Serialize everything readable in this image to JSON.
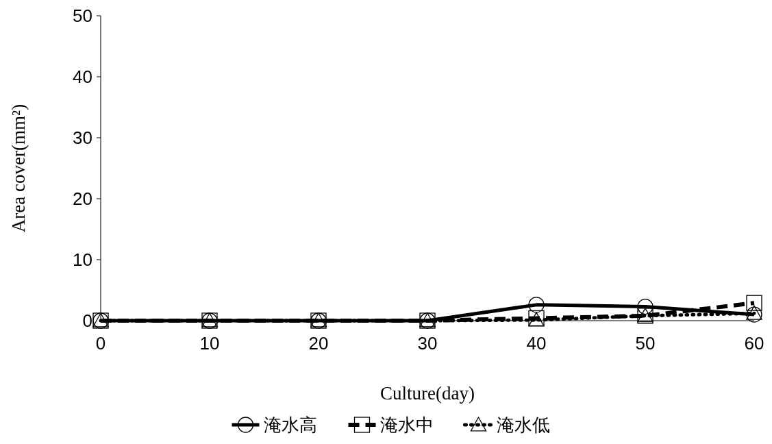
{
  "chart_data": {
    "type": "line",
    "xlabel": "Culture(day)",
    "ylabel": "Area cover(mm²)",
    "x": [
      0,
      10,
      20,
      30,
      40,
      50,
      60
    ],
    "xlim": [
      0,
      60
    ],
    "xticks": [
      0,
      10,
      20,
      30,
      40,
      50,
      60
    ],
    "ylim": [
      0,
      50
    ],
    "yticks": [
      0,
      10,
      20,
      30,
      40,
      50
    ],
    "grid": false,
    "legend": "bottom",
    "series": [
      {
        "name": "淹水高",
        "color": "#000000",
        "marker": "circle",
        "line_style": "solid",
        "values": [
          0,
          0,
          0,
          0,
          2.6,
          2.3,
          1.0
        ]
      },
      {
        "name": "淹水中",
        "color": "#000000",
        "marker": "square",
        "line_style": "dashed",
        "values": [
          0,
          0,
          0,
          0,
          0.4,
          0.8,
          2.9
        ]
      },
      {
        "name": "淹水低",
        "color": "#000000",
        "marker": "triangle",
        "line_style": "dotted",
        "values": [
          0,
          0,
          0,
          0,
          0.1,
          0.8,
          1.2
        ]
      }
    ]
  }
}
